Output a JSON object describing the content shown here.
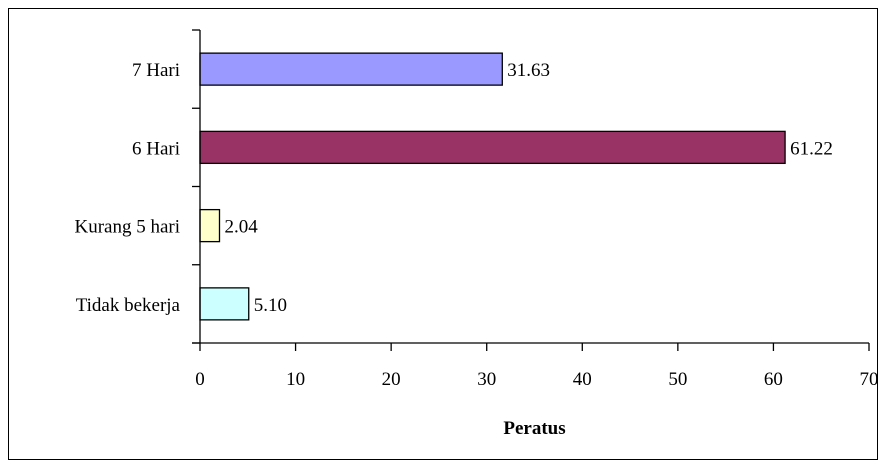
{
  "chart_data": {
    "type": "bar",
    "orientation": "horizontal",
    "categories": [
      "Tidak bekerja",
      "Kurang 5 hari",
      "6 Hari",
      "7 Hari"
    ],
    "values": [
      5.1,
      2.04,
      61.22,
      31.63
    ],
    "value_labels": [
      "5.10",
      "2.04",
      "61.22",
      "31.63"
    ],
    "colors": [
      "#CCFFFF",
      "#FFFFCC",
      "#993366",
      "#9999FF"
    ],
    "xlabel": "Peratus",
    "ylabel": "",
    "xlim": [
      0,
      70
    ],
    "xticks": [
      0,
      10,
      20,
      30,
      40,
      50,
      60,
      70
    ],
    "grid": false,
    "legend": "none"
  }
}
